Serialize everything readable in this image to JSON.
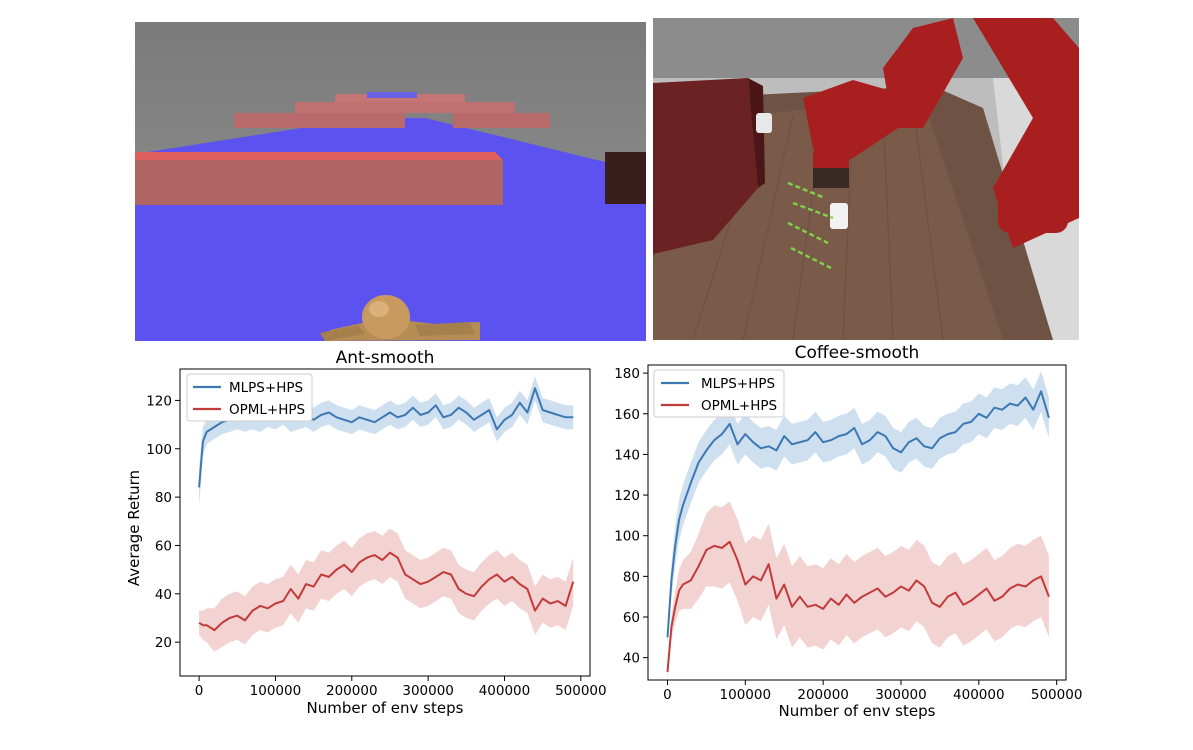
{
  "colors": {
    "mlps": "#3d78b3",
    "opml": "#c23b3b",
    "mlps_band": "#c6d9ec",
    "opml_band": "#f1caca"
  },
  "images": {
    "ant_scene_icon": "ant-maze-render",
    "coffee_scene_icon": "sawyer-coffee-render"
  },
  "chart_data": [
    {
      "type": "line",
      "title": "Ant-smooth",
      "xlabel": "Number of env steps",
      "ylabel": "Average Return",
      "xlim": [
        -25000,
        512000
      ],
      "ylim": [
        6,
        133
      ],
      "xticks": [
        0,
        100000,
        200000,
        300000,
        400000,
        500000
      ],
      "xtick_labels": [
        "0",
        "100000",
        "200000",
        "300000",
        "400000",
        "500000"
      ],
      "yticks": [
        20,
        40,
        60,
        80,
        100,
        120
      ],
      "ytick_labels": [
        "20",
        "40",
        "60",
        "80",
        "100",
        "120"
      ],
      "grid": false,
      "legend": "top-left",
      "x": [
        0,
        5000,
        10000,
        20000,
        30000,
        40000,
        50000,
        60000,
        70000,
        80000,
        90000,
        100000,
        110000,
        120000,
        130000,
        140000,
        150000,
        160000,
        170000,
        180000,
        190000,
        200000,
        210000,
        220000,
        230000,
        240000,
        250000,
        260000,
        270000,
        280000,
        290000,
        300000,
        310000,
        320000,
        330000,
        340000,
        350000,
        360000,
        370000,
        380000,
        390000,
        400000,
        410000,
        420000,
        430000,
        440000,
        450000,
        460000,
        470000,
        480000,
        490000
      ],
      "series": [
        {
          "name": "MLPS+HPS",
          "values": [
            84,
            103,
            107,
            109,
            111,
            112,
            113,
            112,
            113,
            112,
            114,
            113,
            115,
            112,
            113,
            114,
            112,
            114,
            115,
            113,
            112,
            111,
            113,
            112,
            111,
            113,
            115,
            113,
            114,
            117,
            114,
            115,
            118,
            113,
            114,
            117,
            115,
            112,
            114,
            116,
            108,
            112,
            114,
            119,
            115,
            125,
            116,
            115,
            114,
            113,
            113
          ],
          "band": [
            8,
            6,
            5,
            5,
            5,
            5,
            5,
            5,
            5,
            5,
            5,
            5,
            5,
            5,
            5,
            5,
            5,
            5,
            5,
            5,
            5,
            5,
            5,
            5,
            5,
            5,
            5,
            5,
            5,
            5,
            5,
            5,
            5,
            5,
            5,
            5,
            5,
            5,
            5,
            5,
            5,
            5,
            5,
            5,
            5,
            5,
            5,
            5,
            5,
            5,
            5
          ]
        },
        {
          "name": "OPML+HPS",
          "values": [
            28,
            27,
            27,
            25,
            28,
            30,
            31,
            29,
            33,
            35,
            34,
            36,
            37,
            42,
            38,
            44,
            43,
            48,
            47,
            50,
            52,
            49,
            53,
            55,
            56,
            54,
            57,
            55,
            48,
            46,
            44,
            45,
            47,
            49,
            48,
            42,
            40,
            39,
            43,
            46,
            48,
            45,
            47,
            44,
            42,
            33,
            38,
            36,
            37,
            35,
            45
          ],
          "band": [
            5,
            6,
            7,
            9,
            10,
            10,
            10,
            10,
            10,
            10,
            10,
            10,
            10,
            10,
            10,
            10,
            10,
            10,
            10,
            10,
            10,
            10,
            10,
            10,
            10,
            10,
            10,
            10,
            10,
            10,
            10,
            10,
            10,
            10,
            10,
            10,
            10,
            10,
            10,
            10,
            10,
            10,
            10,
            10,
            10,
            10,
            10,
            10,
            10,
            10,
            10
          ]
        }
      ]
    },
    {
      "type": "line",
      "title": "Coffee-smooth",
      "xlabel": "Number of env steps",
      "ylabel": "",
      "xlim": [
        -25000,
        512000
      ],
      "ylim": [
        29,
        184
      ],
      "xticks": [
        0,
        100000,
        200000,
        300000,
        400000,
        500000
      ],
      "xtick_labels": [
        "0",
        "100000",
        "200000",
        "300000",
        "400000",
        "500000"
      ],
      "yticks": [
        40,
        60,
        80,
        100,
        120,
        140,
        160,
        180
      ],
      "ytick_labels": [
        "40",
        "60",
        "80",
        "100",
        "120",
        "140",
        "160",
        "180"
      ],
      "grid": false,
      "legend": "top-left",
      "x": [
        0,
        5000,
        10000,
        15000,
        20000,
        30000,
        40000,
        50000,
        60000,
        70000,
        80000,
        90000,
        100000,
        110000,
        120000,
        130000,
        140000,
        150000,
        160000,
        170000,
        180000,
        190000,
        200000,
        210000,
        220000,
        230000,
        240000,
        250000,
        260000,
        270000,
        280000,
        290000,
        300000,
        310000,
        320000,
        330000,
        340000,
        350000,
        360000,
        370000,
        380000,
        390000,
        400000,
        410000,
        420000,
        430000,
        440000,
        450000,
        460000,
        470000,
        480000,
        490000
      ],
      "series": [
        {
          "name": "MLPS+HPS",
          "values": [
            50,
            78,
            95,
            108,
            115,
            126,
            136,
            142,
            147,
            150,
            155,
            145,
            150,
            146,
            143,
            144,
            142,
            149,
            145,
            146,
            147,
            151,
            146,
            147,
            149,
            150,
            153,
            145,
            147,
            151,
            149,
            143,
            141,
            146,
            148,
            144,
            143,
            148,
            150,
            151,
            155,
            156,
            160,
            158,
            163,
            162,
            165,
            164,
            168,
            162,
            171,
            158
          ],
          "band": [
            4,
            8,
            10,
            10,
            10,
            10,
            10,
            10,
            10,
            10,
            10,
            10,
            10,
            10,
            10,
            10,
            10,
            10,
            10,
            10,
            10,
            10,
            10,
            10,
            10,
            10,
            10,
            10,
            10,
            10,
            10,
            10,
            10,
            10,
            10,
            10,
            10,
            10,
            10,
            10,
            10,
            10,
            10,
            10,
            10,
            10,
            10,
            10,
            10,
            10,
            10,
            10
          ]
        },
        {
          "name": "OPML+HPS",
          "values": [
            33,
            55,
            65,
            73,
            76,
            78,
            85,
            93,
            95,
            94,
            97,
            88,
            76,
            80,
            78,
            86,
            69,
            76,
            65,
            70,
            65,
            66,
            64,
            69,
            66,
            71,
            67,
            70,
            72,
            74,
            70,
            72,
            75,
            73,
            78,
            75,
            67,
            65,
            70,
            72,
            66,
            68,
            71,
            74,
            68,
            70,
            74,
            76,
            75,
            78,
            80,
            70
          ],
          "band": [
            4,
            6,
            8,
            10,
            12,
            14,
            16,
            18,
            20,
            20,
            20,
            20,
            20,
            20,
            20,
            20,
            20,
            20,
            20,
            20,
            20,
            20,
            20,
            20,
            20,
            20,
            20,
            20,
            20,
            20,
            20,
            20,
            20,
            20,
            20,
            20,
            20,
            20,
            20,
            20,
            20,
            20,
            20,
            20,
            20,
            20,
            20,
            20,
            20,
            20,
            20,
            20
          ]
        }
      ]
    }
  ]
}
